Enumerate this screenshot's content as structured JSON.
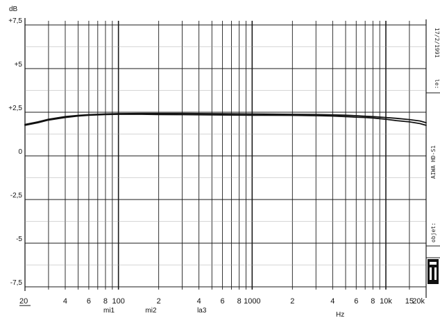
{
  "chart_data": {
    "type": "line",
    "ylabel": "dB",
    "xlabel": "Hz",
    "x_scale": "log",
    "xlim": [
      20,
      20000
    ],
    "ylim": [
      -7.5,
      7.5
    ],
    "grid": true,
    "y_ticks": [
      {
        "value": 7.5,
        "label": "+7,5"
      },
      {
        "value": 5,
        "label": "+5"
      },
      {
        "value": 2.5,
        "label": "+2,5"
      },
      {
        "value": 0,
        "label": "0"
      },
      {
        "value": -2.5,
        "label": "-2,5"
      },
      {
        "value": -5,
        "label": "-5"
      },
      {
        "value": -7.5,
        "label": "-7,5"
      }
    ],
    "x_ticks": [
      {
        "value": 20,
        "label": "20"
      },
      {
        "value": 40,
        "label": "4"
      },
      {
        "value": 60,
        "label": "6"
      },
      {
        "value": 80,
        "label": "8"
      },
      {
        "value": 100,
        "label": "100"
      },
      {
        "value": 200,
        "label": "2"
      },
      {
        "value": 400,
        "label": "4"
      },
      {
        "value": 600,
        "label": "6"
      },
      {
        "value": 800,
        "label": "8"
      },
      {
        "value": 1000,
        "label": "1000"
      },
      {
        "value": 2000,
        "label": "2"
      },
      {
        "value": 4000,
        "label": "4"
      },
      {
        "value": 6000,
        "label": "6"
      },
      {
        "value": 8000,
        "label": "8"
      },
      {
        "value": 10000,
        "label": "10k"
      },
      {
        "value": 15000,
        "label": "15"
      },
      {
        "value": 20000,
        "label": "20k"
      }
    ],
    "x_annotations": [
      {
        "value": 85,
        "label": "mi1"
      },
      {
        "value": 175,
        "label": "mi2"
      },
      {
        "value": 420,
        "label": "la3"
      }
    ],
    "series": [
      {
        "x": [
          20,
          25,
          30,
          40,
          50,
          60,
          80,
          100,
          150,
          200,
          300,
          500,
          1000,
          2000,
          3000,
          4000,
          5000,
          6000,
          7000,
          8000,
          10000,
          12000,
          15000,
          18000,
          20000
        ],
        "values": [
          1.8,
          1.95,
          2.1,
          2.25,
          2.32,
          2.36,
          2.4,
          2.42,
          2.43,
          2.43,
          2.43,
          2.42,
          2.4,
          2.38,
          2.37,
          2.35,
          2.33,
          2.3,
          2.27,
          2.25,
          2.2,
          2.15,
          2.08,
          2.0,
          1.9
        ]
      },
      {
        "x": [
          20,
          25,
          30,
          40,
          50,
          60,
          80,
          100,
          150,
          200,
          300,
          500,
          1000,
          2000,
          3000,
          4000,
          5000,
          6000,
          7000,
          8000,
          10000,
          12000,
          15000,
          18000,
          20000
        ],
        "values": [
          1.75,
          1.9,
          2.05,
          2.2,
          2.28,
          2.33,
          2.37,
          2.38,
          2.38,
          2.37,
          2.36,
          2.35,
          2.33,
          2.32,
          2.3,
          2.28,
          2.25,
          2.22,
          2.2,
          2.17,
          2.1,
          2.02,
          1.95,
          1.85,
          1.75
        ]
      }
    ]
  },
  "side_labels": {
    "top": "17/2/1991",
    "le": "le:",
    "model": "AIWA HD-S1",
    "objet": "objet:"
  },
  "logo": "UT",
  "colors": {
    "grid": "#1a1a1a",
    "curve": "#111111",
    "background": "#ffffff"
  }
}
